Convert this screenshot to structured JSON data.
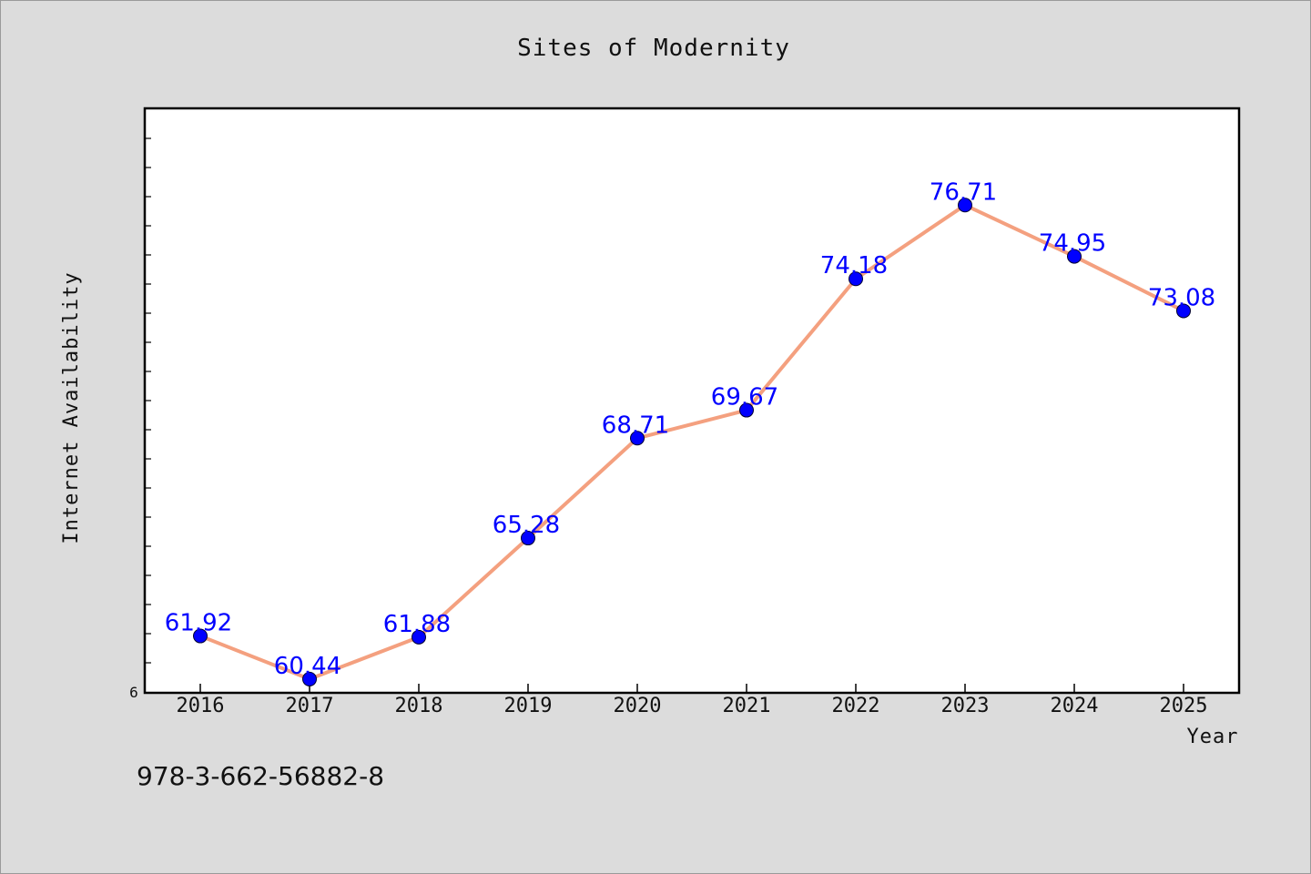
{
  "chart_data": {
    "type": "line",
    "title": "Sites of Modernity",
    "xlabel": "Year",
    "ylabel": "Internet Availability",
    "x": [
      "2016",
      "2017",
      "2018",
      "2019",
      "2020",
      "2021",
      "2022",
      "2023",
      "2024",
      "2025"
    ],
    "series": [
      {
        "values": [
          61.92,
          60.44,
          61.88,
          65.28,
          68.71,
          69.67,
          74.18,
          76.71,
          74.95,
          73.08
        ],
        "labels": [
          "61.92",
          "60.44",
          "61.88",
          "65.28",
          "68.71",
          "69.67",
          "74.18",
          "76.71",
          "74.95",
          "73.08"
        ],
        "line_color": "#f4a07f",
        "marker_color": "#0000ff"
      }
    ],
    "y_min_label": "6",
    "ylim": [
      60,
      80
    ],
    "grid": false,
    "legend": "none"
  },
  "footer": {
    "code": "978-3-662-56882-8"
  },
  "colors": {
    "background": "#dcdcdc",
    "plot_background": "#ffffff",
    "data_label": "#0000ff"
  }
}
